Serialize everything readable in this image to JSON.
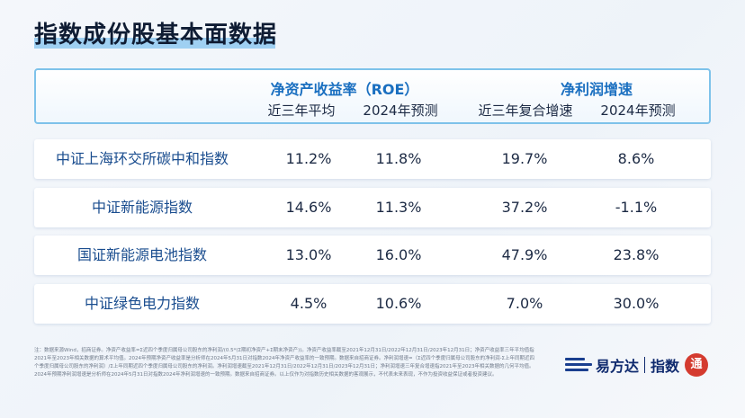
{
  "page_title": "指数成份股基本面数据",
  "header": {
    "roe_group": "净资产收益率（ROE）",
    "profit_group": "净利润增速",
    "roe_cols": [
      "近三年平均",
      "2024年预测"
    ],
    "profit_cols": [
      "近三年复合增速",
      "2024年预测"
    ]
  },
  "rows": [
    {
      "name": "中证上海环交所碳中和指数",
      "roe_avg": "11.2%",
      "roe_2024": "11.8%",
      "np_cagr": "19.7%",
      "np_2024": "8.6%"
    },
    {
      "name": "中证新能源指数",
      "roe_avg": "14.6%",
      "roe_2024": "11.3%",
      "np_cagr": "37.2%",
      "np_2024": "-1.1%"
    },
    {
      "name": "国证新能源电池指数",
      "roe_avg": "13.0%",
      "roe_2024": "16.0%",
      "np_cagr": "47.9%",
      "np_2024": "23.8%"
    },
    {
      "name": "中证绿色电力指数",
      "roe_avg": "4.5%",
      "roe_2024": "10.6%",
      "np_cagr": "7.0%",
      "np_2024": "30.0%"
    }
  ],
  "footnote": "注：数据来源Wind，招商证券。净资产收益率=Σ近四个季度归属母公司股东的净利润/(0.5*(Σ期初净资产+Σ期末净资产))。净资产收益率截至2021年12月31日/2022年12月31日/2023年12月31日；净资产收益率三年平均值指2021年至2023年相关数据的算术平均值。2024年预期净资产收益率是分析师在2024年5月31日对指数2024年净资产收益率的一致预期。数据来自招商证券。净利润增速=（Σ近四个季度归属母公司股东的净利润-Σ上年同期近四个季度归属母公司股东的净利润）/Σ上年同期近四个季度归属母公司股东的净利润。净利润增速截至2021年12月31日/2022年12月31日/2023年12月31日；净利润增速三年复合增速指2021年至2023年相关数据的几何平均值。2024年预期净利润增速是分析师在2024年5月31日对指数2024年净利润增速的一致预期。数据来自招商证券。以上仅作为对指数历史相关数据的客观展示，不代表未来表现，不作为投资收益保证或者投资建议。",
  "brand": {
    "name": "易方达",
    "product": "指数",
    "seal": "通"
  },
  "colors": {
    "accent": "#1a6fc0",
    "header_border": "#7ec2ea",
    "title_highlight": "#9fd0f2",
    "row_name": "#1a4d8f",
    "seal_red": "#d43b2f"
  }
}
